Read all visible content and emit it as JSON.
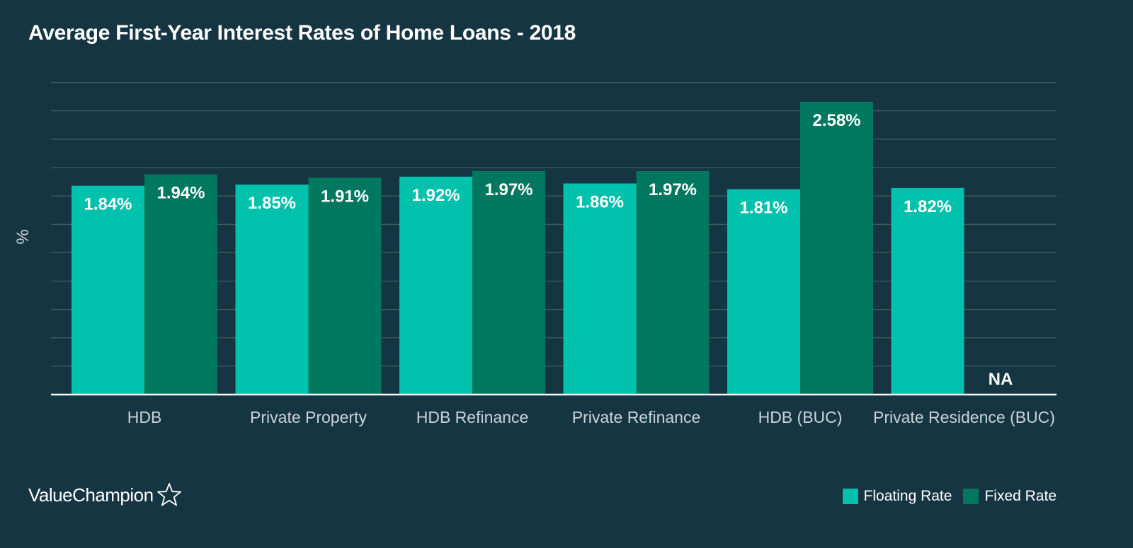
{
  "chart_data": {
    "type": "bar",
    "title": "Average First-Year Interest Rates of Home Loans - 2018",
    "ylabel": "%",
    "xlabel": "",
    "ylim": [
      0,
      2.75
    ],
    "grid": true,
    "legend_position": "bottom-right",
    "categories": [
      "HDB",
      "Private Property",
      "HDB Refinance",
      "Private Refinance",
      "HDB (BUC)",
      "Private Residence (BUC)"
    ],
    "series": [
      {
        "name": "Floating Rate",
        "color": "#00c1ab",
        "values": [
          1.84,
          1.85,
          1.92,
          1.86,
          1.81,
          1.82
        ],
        "labels": [
          "1.84%",
          "1.85%",
          "1.92%",
          "1.86%",
          "1.81%",
          "1.82%"
        ]
      },
      {
        "name": "Fixed Rate",
        "color": "#00775f",
        "values": [
          1.94,
          1.91,
          1.97,
          1.97,
          2.58,
          null
        ],
        "labels": [
          "1.94%",
          "1.91%",
          "1.97%",
          "1.97%",
          "2.58%",
          "NA"
        ]
      }
    ]
  },
  "brand": {
    "name": "ValueChampion",
    "icon": "star-outline-icon"
  },
  "colors": {
    "background": "#163543",
    "gridline": "#4b6670",
    "baseline": "#ffffff",
    "axis_text": "#c8d3d8",
    "value_text": "#ffffff"
  }
}
